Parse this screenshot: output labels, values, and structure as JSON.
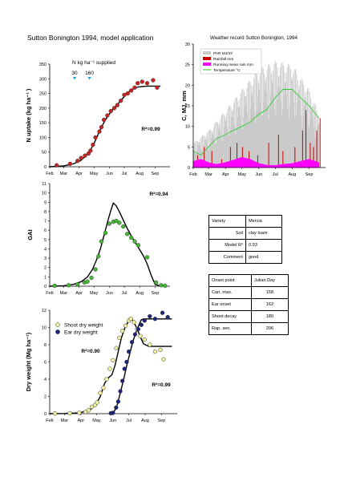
{
  "page_title": "Sutton Bonington 1994, model application",
  "chart_data": [
    {
      "id": "n_uptake",
      "type": "scatter",
      "ylabel": "N uptake (kg ha⁻¹ )",
      "ylim": [
        0,
        350
      ],
      "yticks": [
        0,
        50,
        100,
        150,
        200,
        250,
        300,
        350
      ],
      "xlim": [
        32,
        274
      ],
      "x_tick_labels": [
        "Feb",
        "Mar",
        "Apr",
        "May",
        "Jun",
        "Jul",
        "Aug",
        "Sep"
      ],
      "x_tick_days": [
        32,
        60,
        91,
        121,
        152,
        182,
        213,
        244
      ],
      "annotation_title": "N kg ha⁻¹ supplied",
      "applications": [
        {
          "day": 82,
          "label": "30"
        },
        {
          "day": 112,
          "label": "160"
        }
      ],
      "r2_text": "R²=0.99",
      "observed": {
        "x": [
          46,
          73,
          88,
          95,
          103,
          110,
          114,
          119,
          124,
          132,
          136,
          141,
          148,
          155,
          162,
          168,
          175,
          182,
          189,
          196,
          203,
          209,
          218,
          228,
          240,
          248
        ],
        "y": [
          5,
          10,
          20,
          30,
          38,
          45,
          55,
          75,
          100,
          120,
          135,
          160,
          175,
          190,
          200,
          210,
          225,
          245,
          250,
          260,
          270,
          285,
          290,
          285,
          295,
          270
        ]
      },
      "fitted": {
        "x": [
          32,
          60,
          80,
          95,
          105,
          113,
          120,
          128,
          136,
          144,
          152,
          160,
          168,
          176,
          184,
          192,
          200,
          210,
          220,
          230,
          245,
          255
        ],
        "y": [
          0,
          3,
          10,
          22,
          38,
          55,
          75,
          105,
          135,
          160,
          180,
          197,
          212,
          228,
          243,
          257,
          266,
          272,
          274,
          275,
          275,
          275
        ]
      }
    },
    {
      "id": "gai",
      "type": "scatter",
      "ylabel": "GAI",
      "ylim": [
        0,
        11
      ],
      "yticks": [
        0,
        1,
        2,
        3,
        4,
        5,
        6,
        7,
        8,
        9,
        10,
        11
      ],
      "xlim": [
        32,
        274
      ],
      "x_tick_labels": [
        "Feb",
        "Mar",
        "Apr",
        "May",
        "Jun",
        "Jul",
        "Aug",
        "Sep"
      ],
      "x_tick_days": [
        32,
        60,
        91,
        121,
        152,
        182,
        213,
        244
      ],
      "r2_text": "R²=0.94",
      "observed": {
        "x": [
          42,
          70,
          88,
          102,
          108,
          116,
          124,
          130,
          136,
          144,
          152,
          160,
          166,
          172,
          180,
          188,
          196,
          203,
          210,
          228,
          246,
          256,
          264
        ],
        "y": [
          0.05,
          0.1,
          0.2,
          0.4,
          0.5,
          0.9,
          1.8,
          3.2,
          4.8,
          5.7,
          6.7,
          6.9,
          7.0,
          6.8,
          6.4,
          5.6,
          5.2,
          4.8,
          4.4,
          3.1,
          0.4,
          0.1,
          0.05
        ]
      },
      "fitted": {
        "x": [
          32,
          60,
          80,
          96,
          108,
          118,
          126,
          134,
          142,
          150,
          156,
          160,
          166,
          172,
          180,
          188,
          196,
          204,
          212,
          220,
          228,
          236,
          244,
          255
        ],
        "y": [
          0,
          0.05,
          0.2,
          0.5,
          1.0,
          1.8,
          2.8,
          4.0,
          5.6,
          7.2,
          8.3,
          8.9,
          8.6,
          8.0,
          7.1,
          6.2,
          5.4,
          4.7,
          4.0,
          3.3,
          2.4,
          1.2,
          0.2,
          0
        ]
      }
    },
    {
      "id": "dry_weight",
      "type": "scatter",
      "ylabel": "Dry weight (Mg ha⁻¹)",
      "ylim": [
        0,
        12
      ],
      "yticks": [
        0,
        2,
        4,
        6,
        8,
        10,
        12
      ],
      "xlim": [
        32,
        274
      ],
      "x_tick_labels": [
        "Feb",
        "Mar",
        "Apr",
        "May",
        "Jun",
        "Jul",
        "Aug",
        "Sep"
      ],
      "x_tick_days": [
        32,
        60,
        91,
        121,
        152,
        182,
        213,
        244
      ],
      "legend": [
        "Shoot dry weight",
        "Ear dry weight"
      ],
      "r2_shoot_text": "R²=0.90",
      "r2_ear_text": "R²=0.99",
      "series": [
        {
          "name": "Shoot dry weight",
          "observed": {
            "x": [
              42,
              70,
              88,
              100,
              106,
              112,
              118,
              122,
              128,
              134,
              140,
              146,
              152,
              158,
              164,
              170,
              176,
              182,
              186,
              192,
              198,
              204,
              212,
              222,
              232,
              242,
              248
            ],
            "y": [
              0.02,
              0.05,
              0.1,
              0.2,
              0.4,
              0.8,
              1.0,
              1.3,
              2.4,
              3.0,
              4.0,
              5.2,
              6.2,
              7.6,
              8.8,
              9.6,
              10.2,
              10.8,
              11.0,
              10.6,
              9.8,
              9.0,
              8.6,
              8.0,
              7.2,
              7.4,
              6.3
            ]
          },
          "fitted": {
            "x": [
              32,
              60,
              90,
              110,
              120,
              128,
              136,
              144,
              150,
              156,
              162,
              168,
              175,
              182,
              188,
              192,
              198,
              204,
              210,
              220,
              250,
              264
            ],
            "y": [
              0,
              0.02,
              0.1,
              0.5,
              1.1,
              2.0,
              3.5,
              4.2,
              4.5,
              5.6,
              7.2,
              8.8,
              10.0,
              10.8,
              10.9,
              10.6,
              9.8,
              8.9,
              8.1,
              7.8,
              7.8,
              7.8
            ]
          }
        },
        {
          "name": "Ear dry weight",
          "observed": {
            "x": [
              148,
              152,
              158,
              162,
              166,
              170,
              174,
              178,
              182,
              188,
              194,
              200,
              206,
              212,
              222,
              232,
              246,
              256
            ],
            "y": [
              0.05,
              0.1,
              0.7,
              1.4,
              2.6,
              3.8,
              5.2,
              6.0,
              7.2,
              8.3,
              9.2,
              9.8,
              10.3,
              10.8,
              11.3,
              11.0,
              11.7,
              11.2
            ]
          },
          "fitted": {
            "x": [
              150,
              154,
              160,
              166,
              172,
              178,
              184,
              190,
              196,
              202,
              206,
              210,
              220,
              240,
              264
            ],
            "y": [
              0,
              0.2,
              1.0,
              2.4,
              3.9,
              5.5,
              7.0,
              8.4,
              9.5,
              10.4,
              10.9,
              11.0,
              11.0,
              11.0,
              11.0
            ]
          }
        }
      ]
    },
    {
      "id": "weather",
      "type": "bar",
      "title": "Weather record Sutton Bonington, 1994",
      "ylabel": "C, MJ, mm",
      "ylim": [
        0,
        30
      ],
      "yticks": [
        0,
        5,
        10,
        15,
        20,
        25,
        30
      ],
      "xlim": [
        32,
        274
      ],
      "x_tick_labels": [
        "Feb",
        "Mar",
        "Apr",
        "May",
        "Jun",
        "Jul",
        "Aug",
        "Sep"
      ],
      "x_tick_days": [
        32,
        60,
        91,
        121,
        152,
        182,
        213,
        244
      ],
      "legend": [
        "PAR MJ/m²",
        "Rainfall mm",
        "Running mean rain mm",
        "Temperature °C"
      ],
      "series_colors": [
        "#c9c9c9",
        "#cc0000",
        "#ff00ff",
        "#33cc33"
      ],
      "par_envelope": {
        "x": [
          32,
          60,
          91,
          121,
          152,
          182,
          213,
          244,
          262
        ],
        "y": [
          6,
          9,
          14,
          19,
          24,
          26,
          25,
          19,
          13
        ]
      },
      "temperature": {
        "x": [
          32,
          46,
          60,
          74,
          91,
          105,
          121,
          136,
          152,
          166,
          182,
          196,
          213,
          228,
          244,
          262
        ],
        "y": [
          4,
          3,
          5,
          7,
          8,
          9,
          10,
          11,
          13,
          14,
          17,
          19,
          19,
          17,
          15,
          12
        ]
      },
      "rain_running_mean": {
        "x": [
          32,
          46,
          60,
          74,
          91,
          105,
          121,
          136,
          152,
          166,
          182,
          196,
          213,
          228,
          244,
          262
        ],
        "y": [
          1.5,
          2,
          1.2,
          0.8,
          1.2,
          1.8,
          2.5,
          2,
          1,
          0.6,
          0.5,
          0.8,
          1,
          1.5,
          2,
          1.2
        ]
      },
      "rainfall": {
        "x": [
          40,
          52,
          66,
          84,
          100,
          112,
          122,
          134,
          150,
          170,
          188,
          196,
          218,
          232,
          238,
          246,
          252,
          258,
          264
        ],
        "y": [
          3,
          5,
          4,
          2,
          5,
          6,
          5,
          4,
          3,
          6,
          8,
          4,
          5,
          9,
          14,
          6,
          5,
          9,
          12
        ]
      }
    }
  ],
  "variety_table": {
    "rows": [
      {
        "label": "Variety",
        "value": "Mercia"
      },
      {
        "label": "Soil",
        "value": "clay loam"
      },
      {
        "label": "Model R²",
        "value": "0.93"
      },
      {
        "label": "Comment",
        "value": "good"
      }
    ]
  },
  "onset_table": {
    "header": {
      "label": "Onset point",
      "value": "Julian Day"
    },
    "rows": [
      {
        "label": "Can. max.",
        "value": "158"
      },
      {
        "label": "Ear onset",
        "value": "162"
      },
      {
        "label": "Shoot decay",
        "value": "180"
      },
      {
        "label": "Rap. sen.",
        "value": "206"
      }
    ]
  }
}
